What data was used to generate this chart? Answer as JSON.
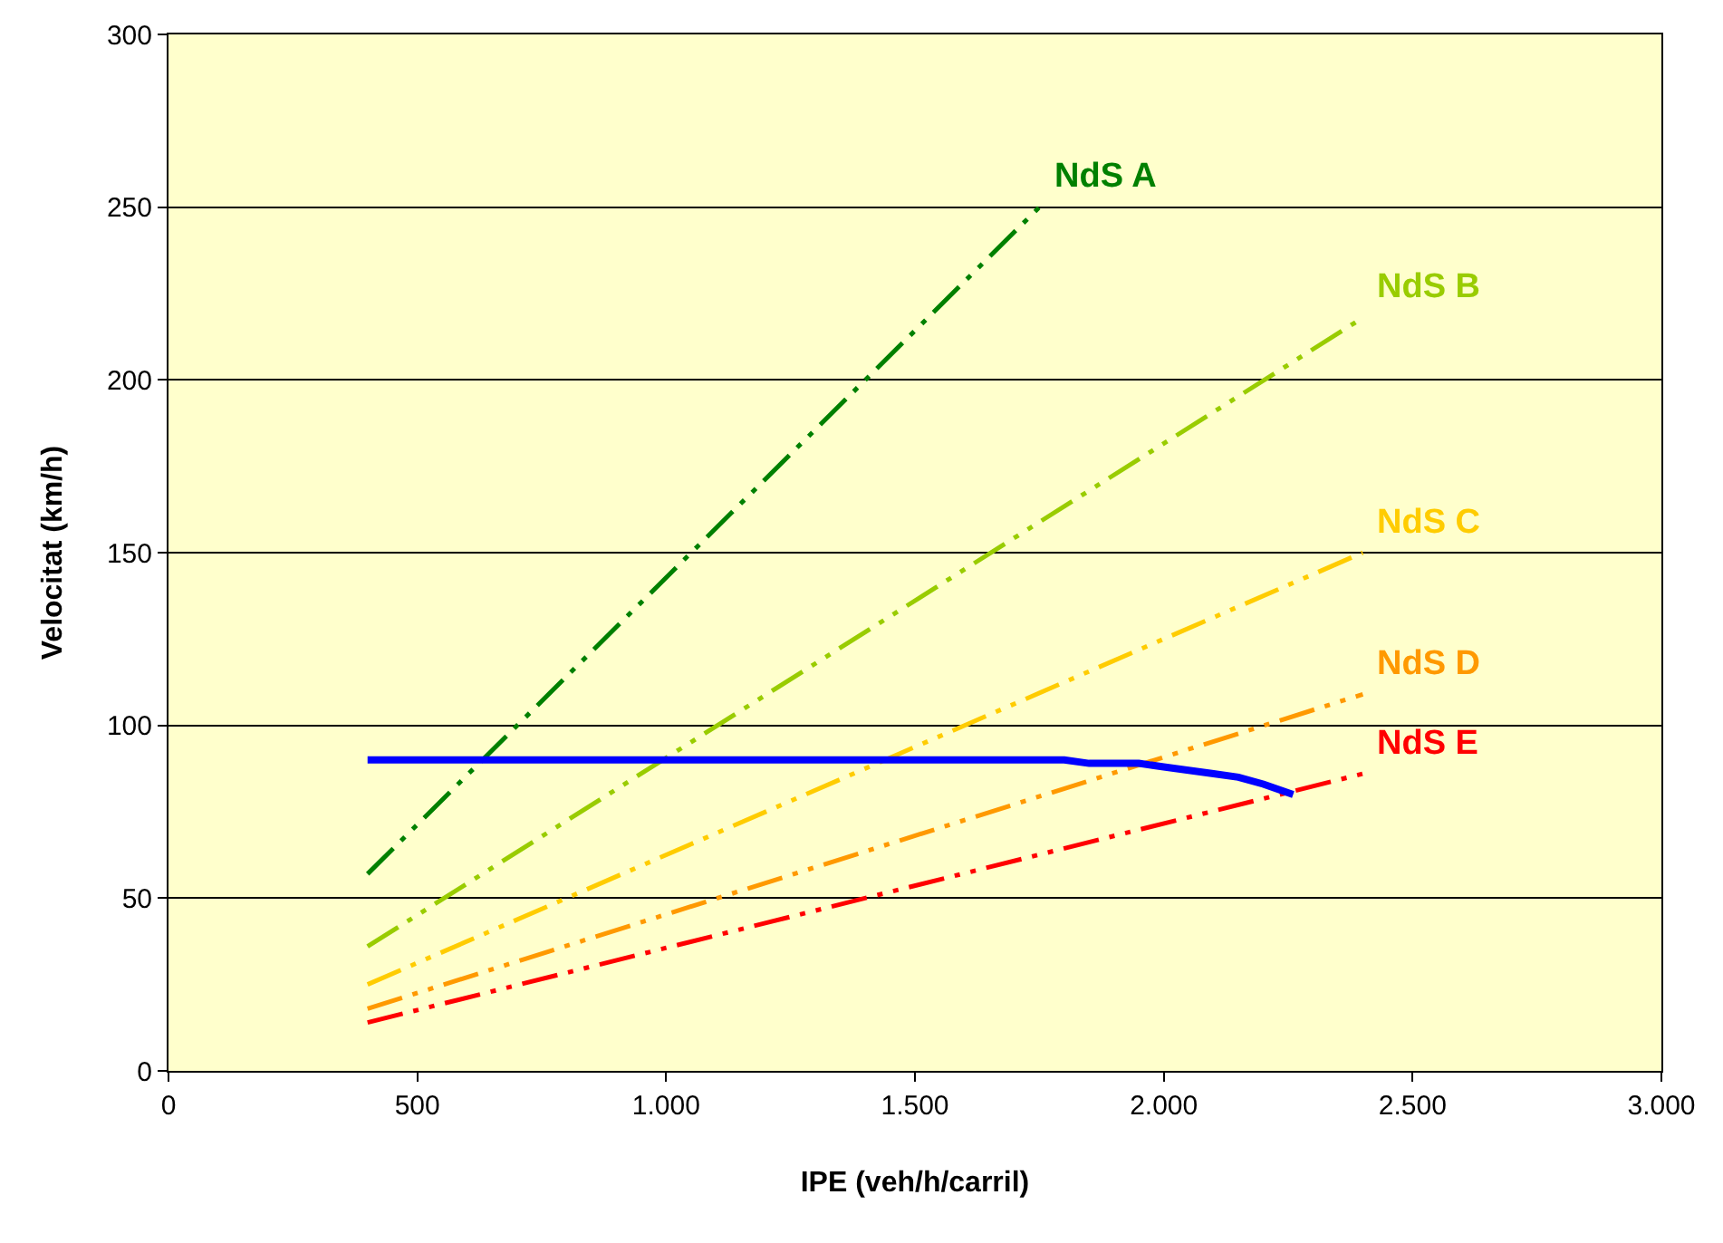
{
  "chart_data": {
    "type": "line",
    "xlabel": "IPE (veh/h/carril)",
    "ylabel": "Velocitat (km/h)",
    "xlim": [
      0,
      3000
    ],
    "xticks": [
      0,
      500,
      {
        "value": 1000,
        "label": "1.000"
      },
      {
        "value": 1500,
        "label": "1.500"
      },
      {
        "value": 2000,
        "label": "2.000"
      },
      {
        "value": 2500,
        "label": "2.500"
      },
      {
        "value": 3000,
        "label": "3.000"
      }
    ],
    "ylim": [
      0,
      300
    ],
    "yticks": [
      0,
      50,
      100,
      150,
      200,
      250,
      300
    ],
    "grid": "y",
    "legend": false,
    "marker": "none",
    "series": [
      {
        "name": "NdS A",
        "color": "#008000",
        "line_style": "dashed",
        "x": [
          400,
          1750
        ],
        "values": [
          57,
          250
        ]
      },
      {
        "name": "NdS B",
        "color": "#99cc00",
        "line_style": "dashed",
        "x": [
          400,
          2400
        ],
        "values": [
          36,
          218
        ]
      },
      {
        "name": "NdS C",
        "color": "#ffcc00",
        "line_style": "dashed",
        "x": [
          400,
          2400
        ],
        "values": [
          25,
          150
        ]
      },
      {
        "name": "NdS D",
        "color": "#ff9900",
        "line_style": "dashed",
        "x": [
          400,
          2400
        ],
        "values": [
          18,
          109
        ]
      },
      {
        "name": "NdS E",
        "color": "#ff0000",
        "line_style": "dashed",
        "x": [
          400,
          2400
        ],
        "values": [
          14,
          86
        ]
      },
      {
        "color": "#0000ff",
        "line_style": "solid",
        "x": [
          400,
          1800,
          1850,
          1950,
          2000,
          2100,
          2150,
          2200,
          2260
        ],
        "values": [
          90,
          90,
          89,
          89,
          88,
          86,
          85,
          83,
          80
        ]
      }
    ]
  }
}
